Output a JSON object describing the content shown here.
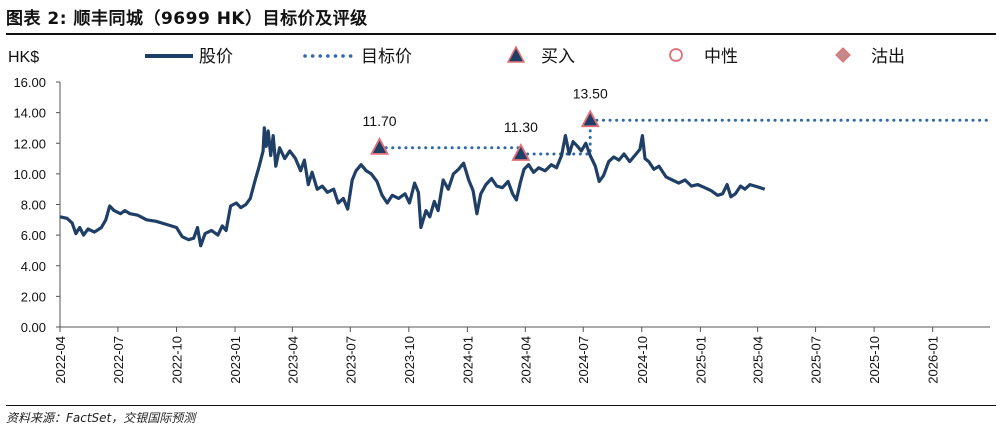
{
  "title": "图表 2: 顺丰同城（9699 HK）目标价及评级",
  "source": "资料来源：FactSet，交银国际预测",
  "chart_data": {
    "type": "line",
    "unit_label": "HK$",
    "ylim": [
      0,
      16
    ],
    "yticks": [
      "0.00",
      "2.00",
      "4.00",
      "6.00",
      "8.00",
      "10.00",
      "12.00",
      "14.00",
      "16.00"
    ],
    "xticks": [
      "2022-04",
      "2022-07",
      "2022-10",
      "2023-01",
      "2023-04",
      "2023-07",
      "2023-10",
      "2024-01",
      "2024-04",
      "2024-07",
      "2024-10",
      "2025-01",
      "2025-04",
      "2025-07",
      "2025-10",
      "2026-01"
    ],
    "xlim": [
      "2022-04-01",
      "2026-04-01"
    ],
    "legend": [
      "股价",
      "目标价",
      "买入",
      "中性",
      "沽出"
    ],
    "colors": {
      "price": "#1f3f66",
      "target": "#2e6aa8",
      "buy": "#e07078",
      "buy_fill": "#1f3f66",
      "neutral": "#e07078",
      "sell_fill": "#c48a8a"
    },
    "series": [
      {
        "name": "股价",
        "points": [
          [
            "2022-04-01",
            7.2
          ],
          [
            "2022-04-12",
            7.1
          ],
          [
            "2022-04-20",
            6.8
          ],
          [
            "2022-04-26",
            6.1
          ],
          [
            "2022-05-02",
            6.5
          ],
          [
            "2022-05-08",
            6.0
          ],
          [
            "2022-05-15",
            6.4
          ],
          [
            "2022-05-25",
            6.2
          ],
          [
            "2022-06-05",
            6.5
          ],
          [
            "2022-06-12",
            7.0
          ],
          [
            "2022-06-18",
            7.9
          ],
          [
            "2022-06-25",
            7.6
          ],
          [
            "2022-07-05",
            7.4
          ],
          [
            "2022-07-12",
            7.6
          ],
          [
            "2022-07-20",
            7.4
          ],
          [
            "2022-08-01",
            7.3
          ],
          [
            "2022-08-15",
            7.0
          ],
          [
            "2022-08-30",
            6.9
          ],
          [
            "2022-09-15",
            6.7
          ],
          [
            "2022-10-01",
            6.5
          ],
          [
            "2022-10-10",
            5.9
          ],
          [
            "2022-10-20",
            5.7
          ],
          [
            "2022-10-28",
            5.8
          ],
          [
            "2022-11-03",
            6.5
          ],
          [
            "2022-11-08",
            5.3
          ],
          [
            "2022-11-15",
            6.1
          ],
          [
            "2022-11-25",
            6.3
          ],
          [
            "2022-12-05",
            6.0
          ],
          [
            "2022-12-12",
            6.6
          ],
          [
            "2022-12-18",
            6.3
          ],
          [
            "2022-12-25",
            7.9
          ],
          [
            "2023-01-03",
            8.1
          ],
          [
            "2023-01-10",
            7.8
          ],
          [
            "2023-01-18",
            8.0
          ],
          [
            "2023-01-25",
            8.4
          ],
          [
            "2023-02-01",
            9.5
          ],
          [
            "2023-02-08",
            10.5
          ],
          [
            "2023-02-14",
            11.5
          ],
          [
            "2023-02-16",
            13.0
          ],
          [
            "2023-02-19",
            11.8
          ],
          [
            "2023-02-22",
            12.8
          ],
          [
            "2023-02-26",
            11.2
          ],
          [
            "2023-03-02",
            12.5
          ],
          [
            "2023-03-06",
            10.5
          ],
          [
            "2023-03-12",
            11.7
          ],
          [
            "2023-03-20",
            11.0
          ],
          [
            "2023-03-28",
            11.5
          ],
          [
            "2023-04-06",
            11.0
          ],
          [
            "2023-04-14",
            10.2
          ],
          [
            "2023-04-20",
            10.9
          ],
          [
            "2023-04-26",
            9.3
          ],
          [
            "2023-05-02",
            10.1
          ],
          [
            "2023-05-10",
            9.0
          ],
          [
            "2023-05-18",
            9.2
          ],
          [
            "2023-05-26",
            8.8
          ],
          [
            "2023-06-05",
            9.0
          ],
          [
            "2023-06-12",
            8.1
          ],
          [
            "2023-06-20",
            8.4
          ],
          [
            "2023-06-27",
            7.7
          ],
          [
            "2023-07-04",
            9.6
          ],
          [
            "2023-07-10",
            10.2
          ],
          [
            "2023-07-18",
            10.6
          ],
          [
            "2023-07-26",
            10.2
          ],
          [
            "2023-08-03",
            10.0
          ],
          [
            "2023-08-12",
            9.5
          ],
          [
            "2023-08-20",
            8.6
          ],
          [
            "2023-08-28",
            8.1
          ],
          [
            "2023-09-05",
            8.6
          ],
          [
            "2023-09-15",
            8.4
          ],
          [
            "2023-09-25",
            8.7
          ],
          [
            "2023-10-02",
            8.1
          ],
          [
            "2023-10-10",
            9.4
          ],
          [
            "2023-10-16",
            8.8
          ],
          [
            "2023-10-20",
            6.5
          ],
          [
            "2023-10-28",
            7.6
          ],
          [
            "2023-11-03",
            7.2
          ],
          [
            "2023-11-10",
            8.2
          ],
          [
            "2023-11-16",
            7.6
          ],
          [
            "2023-11-24",
            9.6
          ],
          [
            "2023-12-02",
            9.0
          ],
          [
            "2023-12-10",
            10.0
          ],
          [
            "2023-12-18",
            10.3
          ],
          [
            "2023-12-26",
            10.7
          ],
          [
            "2024-01-03",
            9.6
          ],
          [
            "2024-01-10",
            8.9
          ],
          [
            "2024-01-16",
            7.4
          ],
          [
            "2024-01-22",
            8.7
          ],
          [
            "2024-01-30",
            9.3
          ],
          [
            "2024-02-08",
            9.7
          ],
          [
            "2024-02-16",
            9.2
          ],
          [
            "2024-02-25",
            9.1
          ],
          [
            "2024-03-05",
            9.5
          ],
          [
            "2024-03-12",
            8.7
          ],
          [
            "2024-03-18",
            8.3
          ],
          [
            "2024-03-24",
            9.4
          ],
          [
            "2024-03-30",
            10.3
          ],
          [
            "2024-04-06",
            10.6
          ],
          [
            "2024-04-14",
            10.1
          ],
          [
            "2024-04-22",
            10.4
          ],
          [
            "2024-05-02",
            10.2
          ],
          [
            "2024-05-12",
            10.6
          ],
          [
            "2024-05-20",
            10.4
          ],
          [
            "2024-05-28",
            11.2
          ],
          [
            "2024-06-03",
            12.5
          ],
          [
            "2024-06-09",
            11.3
          ],
          [
            "2024-06-15",
            12.1
          ],
          [
            "2024-06-22",
            11.8
          ],
          [
            "2024-06-28",
            11.5
          ],
          [
            "2024-07-05",
            12.0
          ],
          [
            "2024-07-12",
            11.2
          ],
          [
            "2024-07-20",
            10.5
          ],
          [
            "2024-07-26",
            9.5
          ],
          [
            "2024-08-02",
            9.9
          ],
          [
            "2024-08-10",
            10.8
          ],
          [
            "2024-08-18",
            11.1
          ],
          [
            "2024-08-26",
            10.9
          ],
          [
            "2024-09-03",
            11.3
          ],
          [
            "2024-09-12",
            10.8
          ],
          [
            "2024-09-20",
            11.2
          ],
          [
            "2024-09-28",
            11.6
          ],
          [
            "2024-10-02",
            12.5
          ],
          [
            "2024-10-06",
            11.0
          ],
          [
            "2024-10-12",
            10.8
          ],
          [
            "2024-10-20",
            10.3
          ],
          [
            "2024-10-28",
            10.5
          ],
          [
            "2024-11-08",
            9.8
          ],
          [
            "2024-11-18",
            9.6
          ],
          [
            "2024-11-28",
            9.4
          ],
          [
            "2024-12-08",
            9.6
          ],
          [
            "2024-12-18",
            9.2
          ],
          [
            "2024-12-28",
            9.3
          ],
          [
            "2025-01-08",
            9.1
          ],
          [
            "2025-01-18",
            8.9
          ],
          [
            "2025-01-28",
            8.6
          ],
          [
            "2025-02-05",
            8.7
          ],
          [
            "2025-02-12",
            9.3
          ],
          [
            "2025-02-18",
            8.5
          ],
          [
            "2025-02-25",
            8.7
          ],
          [
            "2025-03-05",
            9.2
          ],
          [
            "2025-03-12",
            9.0
          ],
          [
            "2025-03-20",
            9.3
          ],
          [
            "2025-03-28",
            9.2
          ],
          [
            "2025-04-05",
            9.1
          ],
          [
            "2025-04-12",
            9.0
          ]
        ]
      },
      {
        "name": "目标价",
        "segments": [
          [
            [
              "2023-08-16",
              11.7
            ],
            [
              "2024-03-25",
              11.7
            ]
          ],
          [
            [
              "2024-03-25",
              11.3
            ],
            [
              "2024-07-12",
              11.3
            ],
            [
              "2024-07-12",
              13.5
            ]
          ],
          [
            [
              "2024-07-12",
              13.5
            ],
            [
              "2026-03-31",
              13.5
            ]
          ]
        ]
      }
    ],
    "ratings": [
      {
        "type": "买入",
        "date": "2023-08-16",
        "value": 11.7,
        "label": "11.70"
      },
      {
        "type": "买入",
        "date": "2024-03-25",
        "value": 11.3,
        "label": "11.30"
      },
      {
        "type": "买入",
        "date": "2024-07-12",
        "value": 13.5,
        "label": "13.50"
      }
    ]
  }
}
